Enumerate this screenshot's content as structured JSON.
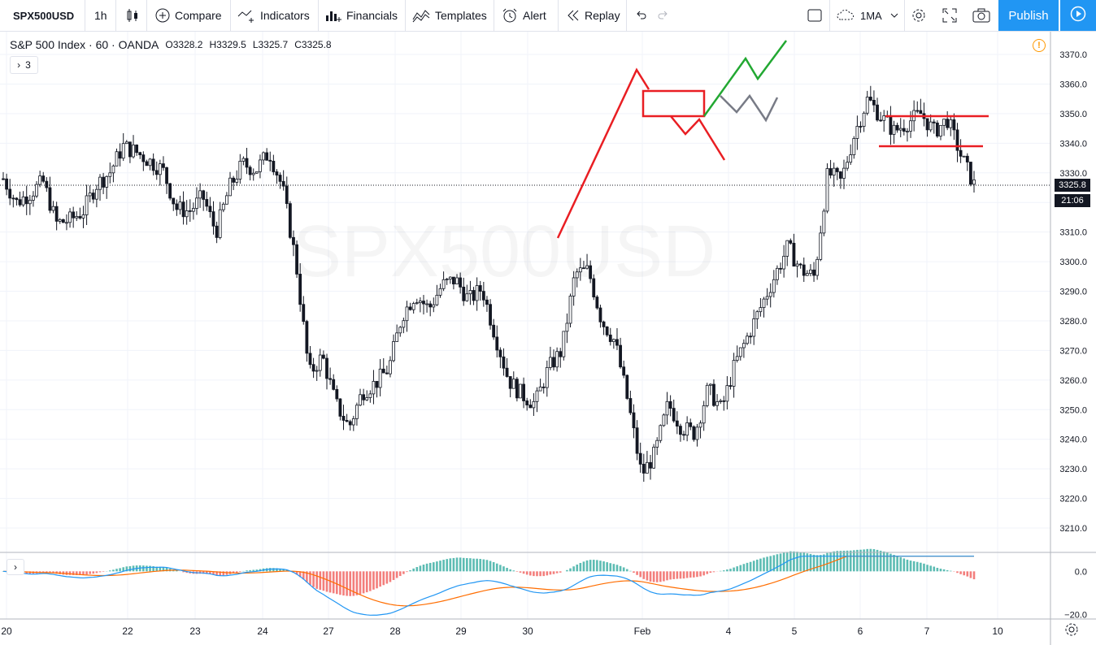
{
  "toolbar": {
    "symbol": "SPX500USD",
    "interval": "1h",
    "compare": "Compare",
    "indicators": "Indicators",
    "financials": "Financials",
    "templates": "Templates",
    "alert": "Alert",
    "replay": "Replay",
    "ma_label": "1MA",
    "publish": "Publish"
  },
  "legend": {
    "title": "S&P 500 Index · 60 · OANDA",
    "open": "O3328.2",
    "high": "H3329.5",
    "low": "L3325.7",
    "close": "C3325.8",
    "indicator_count": "3"
  },
  "colors": {
    "accent": "#2196f3",
    "drawing_red": "#e91e23",
    "drawing_green": "#22a832",
    "drawing_gray": "#787b86",
    "macd_line": "#2196f3",
    "signal_line": "#ff6d00",
    "hist_up": "#26a69a",
    "hist_down": "#ef5350",
    "warning": "#ff9800"
  },
  "chart_data": {
    "type": "candlestick",
    "title": "S&P 500 Index · 60 · OANDA",
    "price_axis": [
      "3370.0",
      "3360.0",
      "3350.0",
      "3340.0",
      "3330.0",
      "3320.0",
      "3310.0",
      "3300.0",
      "3290.0",
      "3280.0",
      "3270.0",
      "3260.0",
      "3250.0",
      "3240.0",
      "3230.0",
      "3220.0",
      "3210.0"
    ],
    "ylim": [
      3203,
      3378
    ],
    "time_axis": [
      "20",
      "22",
      "23",
      "24",
      "27",
      "28",
      "29",
      "30",
      "Feb",
      "4",
      "5",
      "6",
      "7",
      "10"
    ],
    "last_price": "3325.8",
    "countdown": "21:06",
    "close_path": [
      [
        0,
        3328
      ],
      [
        1,
        3320
      ],
      [
        2,
        3323
      ],
      [
        3,
        3327
      ],
      [
        4,
        3313
      ],
      [
        5,
        3314
      ],
      [
        6,
        3317
      ],
      [
        7,
        3326
      ],
      [
        8,
        3330
      ],
      [
        9,
        3339
      ],
      [
        10,
        3337
      ],
      [
        11,
        3334
      ],
      [
        12,
        3331
      ],
      [
        13,
        3318
      ],
      [
        14,
        3317
      ],
      [
        15,
        3322
      ],
      [
        16,
        3310
      ],
      [
        17,
        3325
      ],
      [
        18,
        3333
      ],
      [
        19,
        3331
      ],
      [
        20,
        3337
      ],
      [
        21,
        3325
      ],
      [
        22,
        3300
      ],
      [
        23,
        3262
      ],
      [
        24,
        3268
      ],
      [
        25,
        3252
      ],
      [
        26,
        3244
      ],
      [
        27,
        3256
      ],
      [
        28,
        3259
      ],
      [
        29,
        3264
      ],
      [
        30,
        3282
      ],
      [
        31,
        3289
      ],
      [
        32,
        3284
      ],
      [
        33,
        3292
      ],
      [
        34,
        3294
      ],
      [
        35,
        3287
      ],
      [
        36,
        3291
      ],
      [
        37,
        3275
      ],
      [
        38,
        3260
      ],
      [
        39,
        3255
      ],
      [
        40,
        3252
      ],
      [
        41,
        3264
      ],
      [
        42,
        3270
      ],
      [
        43,
        3296
      ],
      [
        44,
        3297
      ],
      [
        45,
        3280
      ],
      [
        46,
        3273
      ],
      [
        47,
        3252
      ],
      [
        48,
        3228
      ],
      [
        49,
        3235
      ],
      [
        50,
        3252
      ],
      [
        51,
        3244
      ],
      [
        52,
        3242
      ],
      [
        53,
        3257
      ],
      [
        54,
        3250
      ],
      [
        55,
        3265
      ],
      [
        56,
        3275
      ],
      [
        57,
        3285
      ],
      [
        58,
        3295
      ],
      [
        59,
        3305
      ],
      [
        60,
        3297
      ],
      [
        61,
        3295
      ],
      [
        62,
        3330
      ],
      [
        63,
        3327
      ],
      [
        64,
        3343
      ],
      [
        65,
        3355
      ],
      [
        66,
        3349
      ],
      [
        67,
        3344
      ],
      [
        68,
        3347
      ],
      [
        69,
        3350
      ],
      [
        70,
        3344
      ],
      [
        71,
        3348
      ],
      [
        72,
        3336
      ],
      [
        73,
        3326
      ]
    ],
    "macd": {
      "ylim": [
        -22,
        8
      ],
      "axis": [
        "0.0",
        "−20.0"
      ]
    }
  }
}
